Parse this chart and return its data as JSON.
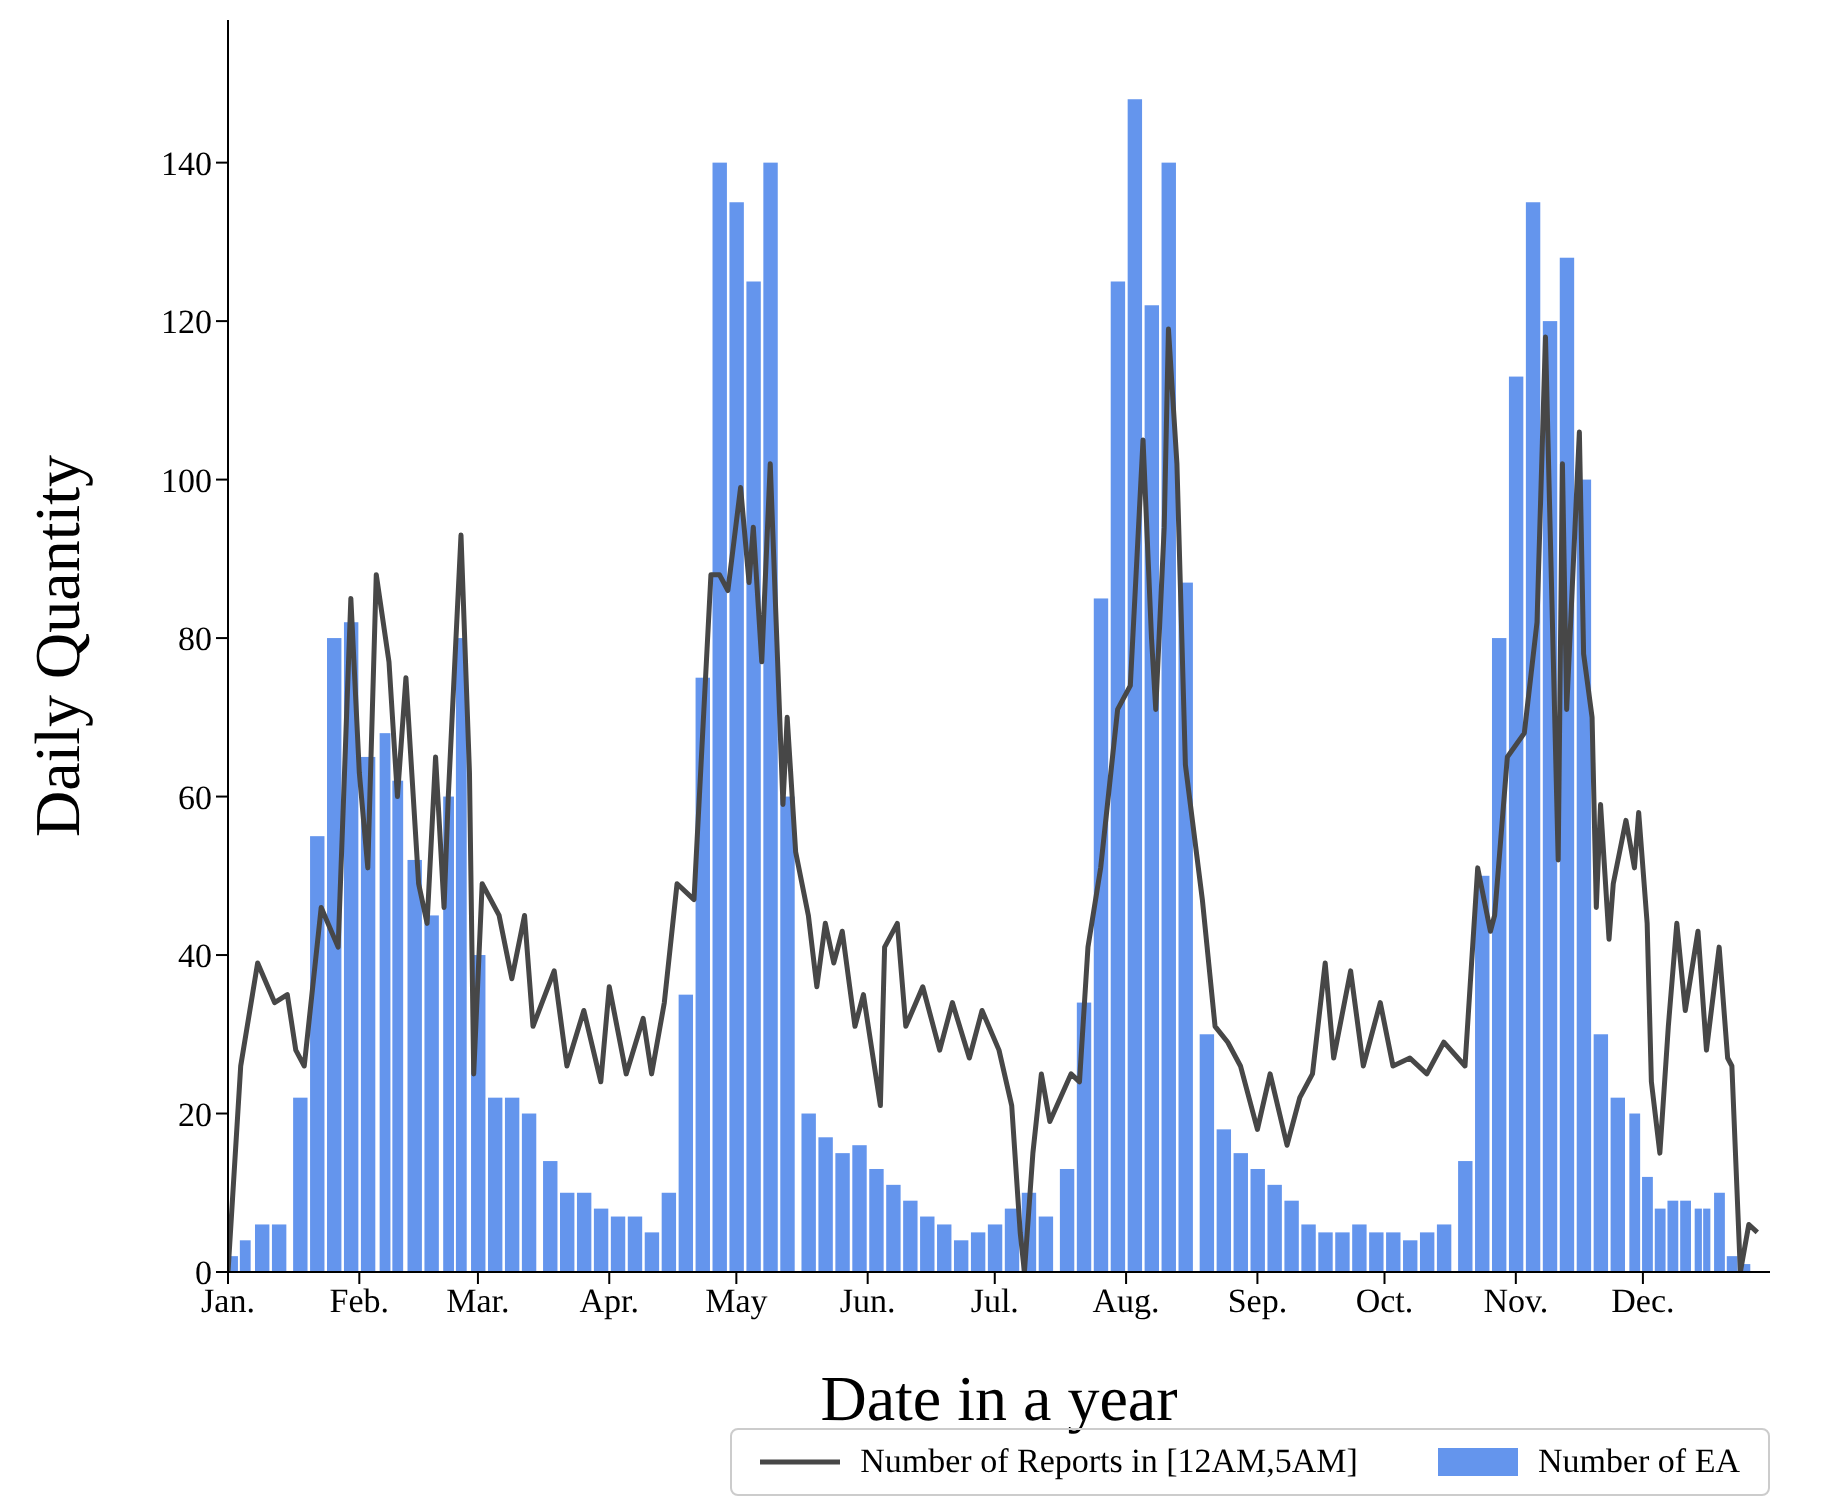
{
  "chart_data": {
    "type": "bar",
    "xlabel": "Date in a year",
    "ylabel": "Daily Quantity",
    "legend": "bottom right",
    "xlim": [
      "--01-01",
      "--12-31"
    ],
    "ylim": [
      0,
      158
    ],
    "xticks": [
      {
        "value": "--01-01",
        "label": "Jan."
      },
      {
        "value": "--02-01",
        "label": "Feb."
      },
      {
        "value": "--03-01",
        "label": "Mar."
      },
      {
        "value": "--04-01",
        "label": "Apr."
      },
      {
        "value": "--05-01",
        "label": "May"
      },
      {
        "value": "--06-01",
        "label": "Jun."
      },
      {
        "value": "--07-01",
        "label": "Jul."
      },
      {
        "value": "--08-01",
        "label": "Aug."
      },
      {
        "value": "--09-01",
        "label": "Sep."
      },
      {
        "value": "--10-01",
        "label": "Oct."
      },
      {
        "value": "--11-01",
        "label": "Nov."
      },
      {
        "value": "--12-01",
        "label": "Dec."
      }
    ],
    "yticks": [
      0,
      20,
      40,
      60,
      80,
      100,
      120,
      140
    ],
    "series": [
      {
        "type": "line",
        "name": "Number of Reports in [12AM,5AM]",
        "color": "#474747",
        "x": [
          "--01-01",
          "--01-04",
          "--01-08",
          "--01-12",
          "--01-15",
          "--01-17",
          "--01-19",
          "--01-23",
          "--01-27",
          "--01-30",
          "--02-01",
          "--02-03",
          "--02-05",
          "--02-08",
          "--02-10",
          "--02-12",
          "--02-15",
          "--02-17",
          "--02-19",
          "--02-21",
          "--02-22",
          "--02-25",
          "--02-27",
          "--02-28",
          "--03-02",
          "--03-06",
          "--03-09",
          "--03-12",
          "--03-14",
          "--03-19",
          "--03-22",
          "--03-26",
          "--03-30",
          "--04-01",
          "--04-05",
          "--04-09",
          "--04-11",
          "--04-14",
          "--04-17",
          "--04-21",
          "--04-25",
          "--04-27",
          "--04-29",
          "--05-02",
          "--05-04",
          "--05-05",
          "--05-07",
          "--05-09",
          "--05-12",
          "--05-13",
          "--05-15",
          "--05-18",
          "--05-20",
          "--05-22",
          "--05-24",
          "--05-26",
          "--05-29",
          "--05-31",
          "--06-04",
          "--06-05",
          "--06-08",
          "--06-10",
          "--06-14",
          "--06-18",
          "--06-21",
          "--06-25",
          "--06-28",
          "--07-02",
          "--07-05",
          "--07-07",
          "--07-08",
          "--07-10",
          "--07-12",
          "--07-14",
          "--07-19",
          "--07-21",
          "--07-23",
          "--07-26",
          "--07-30",
          "--08-02",
          "--08-05",
          "--08-07",
          "--08-08",
          "--08-10",
          "--08-11",
          "--08-13",
          "--08-15",
          "--08-19",
          "--08-22",
          "--08-25",
          "--08-28",
          "--09-01",
          "--09-04",
          "--09-08",
          "--09-11",
          "--09-14",
          "--09-17",
          "--09-19",
          "--09-23",
          "--09-26",
          "--09-30",
          "--10-03",
          "--10-07",
          "--10-11",
          "--10-15",
          "--10-20",
          "--10-23",
          "--10-26",
          "--10-27",
          "--10-30",
          "--11-03",
          "--11-06",
          "--11-08",
          "--11-11",
          "--11-12",
          "--11-13",
          "--11-16",
          "--11-17",
          "--11-19",
          "--11-20",
          "--11-21",
          "--11-23",
          "--11-24",
          "--11-27",
          "--11-29",
          "--11-30",
          "--12-02",
          "--12-03",
          "--12-05",
          "--12-07",
          "--12-09",
          "--12-11",
          "--12-14",
          "--12-16",
          "--12-19",
          "--12-21",
          "--12-22",
          "--12-24",
          "--12-26",
          "--12-28"
        ],
        "values": [
          0,
          26,
          39,
          34,
          35,
          28,
          26,
          46,
          41,
          85,
          63,
          51,
          88,
          77,
          60,
          75,
          49,
          44,
          65,
          46,
          60,
          93,
          63,
          25,
          49,
          45,
          37,
          45,
          31,
          38,
          26,
          33,
          24,
          36,
          25,
          32,
          25,
          34,
          49,
          47,
          88,
          88,
          86,
          99,
          87,
          94,
          77,
          102,
          59,
          70,
          53,
          45,
          36,
          44,
          39,
          43,
          31,
          35,
          21,
          41,
          44,
          31,
          36,
          28,
          34,
          27,
          33,
          28,
          21,
          5,
          0,
          15,
          25,
          19,
          25,
          24,
          41,
          51,
          71,
          74,
          105,
          80,
          71,
          94,
          119,
          102,
          64,
          47,
          31,
          29,
          26,
          18,
          25,
          16,
          22,
          25,
          39,
          27,
          38,
          26,
          34,
          26,
          27,
          25,
          29,
          26,
          51,
          43,
          45,
          65,
          68,
          82,
          118,
          52,
          102,
          71,
          106,
          78,
          70,
          46,
          59,
          42,
          49,
          57,
          51,
          58,
          44,
          24,
          15,
          31,
          44,
          33,
          43,
          28,
          41,
          27,
          26,
          0,
          6,
          5
        ]
      },
      {
        "name": "Number of EA",
        "color": "#6495ed",
        "x": [
          "--01-02",
          "--01-05",
          "--01-09",
          "--01-13",
          "--01-18",
          "--01-22",
          "--01-26",
          "--01-30",
          "--02-03",
          "--02-07",
          "--02-10",
          "--02-14",
          "--02-18",
          "--02-22",
          "--02-25",
          "--03-01",
          "--03-05",
          "--03-09",
          "--03-13",
          "--03-18",
          "--03-22",
          "--03-26",
          "--03-30",
          "--04-03",
          "--04-07",
          "--04-11",
          "--04-15",
          "--04-19",
          "--04-23",
          "--04-27",
          "--05-01",
          "--05-05",
          "--05-09",
          "--05-13",
          "--05-18",
          "--05-22",
          "--05-26",
          "--05-30",
          "--06-03",
          "--06-07",
          "--06-11",
          "--06-15",
          "--06-19",
          "--06-23",
          "--06-27",
          "--07-01",
          "--07-05",
          "--07-09",
          "--07-13",
          "--07-18",
          "--07-22",
          "--07-26",
          "--07-30",
          "--08-03",
          "--08-07",
          "--08-11",
          "--08-15",
          "--08-20",
          "--08-24",
          "--08-28",
          "--09-01",
          "--09-05",
          "--09-09",
          "--09-13",
          "--09-17",
          "--09-21",
          "--09-25",
          "--09-29",
          "--10-03",
          "--10-07",
          "--10-11",
          "--10-15",
          "--10-20",
          "--10-24",
          "--10-28",
          "--11-01",
          "--11-05",
          "--11-09",
          "--11-13",
          "--11-17",
          "--11-21",
          "--11-25",
          "--11-29",
          "--12-02",
          "--12-05",
          "--12-08",
          "--12-11",
          "--12-14",
          "--12-16",
          "--12-19",
          "--12-22",
          "--12-25"
        ],
        "values": [
          2,
          4,
          6,
          6,
          22,
          55,
          80,
          82,
          65,
          68,
          62,
          52,
          45,
          60,
          80,
          40,
          22,
          22,
          20,
          14,
          10,
          10,
          8,
          7,
          7,
          5,
          10,
          35,
          75,
          140,
          135,
          125,
          140,
          60,
          20,
          17,
          15,
          16,
          13,
          11,
          9,
          7,
          6,
          4,
          5,
          6,
          8,
          10,
          7,
          13,
          34,
          85,
          125,
          148,
          122,
          140,
          87,
          30,
          18,
          15,
          13,
          11,
          9,
          6,
          5,
          5,
          6,
          5,
          5,
          4,
          5,
          6,
          14,
          50,
          80,
          113,
          135,
          120,
          128,
          100,
          30,
          22,
          20,
          12,
          8,
          9,
          9,
          8,
          8,
          10,
          2,
          1
        ]
      }
    ]
  }
}
